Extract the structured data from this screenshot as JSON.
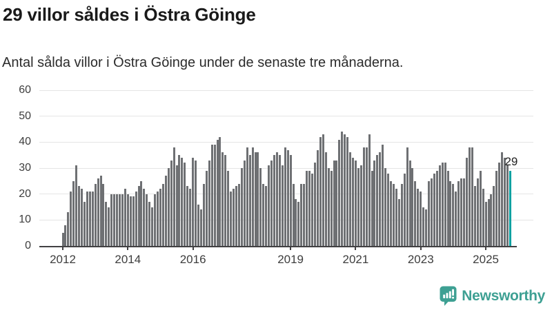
{
  "header": {
    "title": "29 villor såldes i Östra Göinge",
    "subtitle": "Antal sålda villor i Östra Göinge under de senaste tre månaderna."
  },
  "chart_data": {
    "type": "bar",
    "title": "29 villor såldes i Östra Göinge",
    "subtitle": "Antal sålda villor i Östra Göinge under de senaste tre månaderna.",
    "x_unit": "month",
    "x_start": "2012-01",
    "x_end": "2025-10",
    "x_tick_years": [
      2012,
      2014,
      2016,
      2019,
      2021,
      2023,
      2025
    ],
    "y_ticks": [
      0,
      10,
      20,
      30,
      40,
      50,
      60
    ],
    "ylim": [
      0,
      60
    ],
    "grid": "horizontal",
    "legend": "none",
    "values": [
      5,
      8,
      13,
      21,
      25,
      31,
      23,
      22,
      17,
      21,
      21,
      21,
      24,
      26,
      27,
      24,
      17,
      15,
      20,
      20,
      20,
      20,
      20,
      22,
      20,
      19,
      19,
      21,
      23,
      25,
      22,
      20,
      17,
      15,
      20,
      21,
      22,
      24,
      27,
      30,
      33,
      38,
      31,
      35,
      34,
      32,
      23,
      22,
      34,
      33,
      16,
      14,
      24,
      29,
      33,
      39,
      39,
      41,
      42,
      36,
      35,
      29,
      21,
      22,
      23,
      24,
      30,
      33,
      38,
      35,
      38,
      36,
      36,
      30,
      24,
      23,
      31,
      33,
      35,
      36,
      35,
      31,
      38,
      37,
      35,
      24,
      18,
      17,
      24,
      24,
      29,
      29,
      28,
      32,
      37,
      42,
      43,
      36,
      30,
      29,
      33,
      33,
      41,
      44,
      43,
      42,
      36,
      34,
      33,
      30,
      31,
      38,
      38,
      43,
      29,
      33,
      35,
      36,
      39,
      30,
      28,
      25,
      24,
      22,
      18,
      24,
      28,
      38,
      33,
      30,
      25,
      22,
      21,
      15,
      14,
      25,
      26,
      28,
      29,
      31,
      32,
      32,
      29,
      25,
      24,
      21,
      25,
      26,
      26,
      34,
      38,
      38,
      23,
      26,
      29,
      22,
      17,
      18,
      20,
      23,
      29,
      32,
      36,
      34,
      31,
      29
    ],
    "highlight_last": true,
    "annotation": {
      "text": "29"
    },
    "colors": {
      "bar": "#6e7073",
      "highlight": "#00a2a2"
    }
  },
  "footer": {
    "logo_text": "Newsworthy",
    "logo_icon": "newsworthy-speech-bubble-chart-icon",
    "logo_color": "#3ea093"
  }
}
